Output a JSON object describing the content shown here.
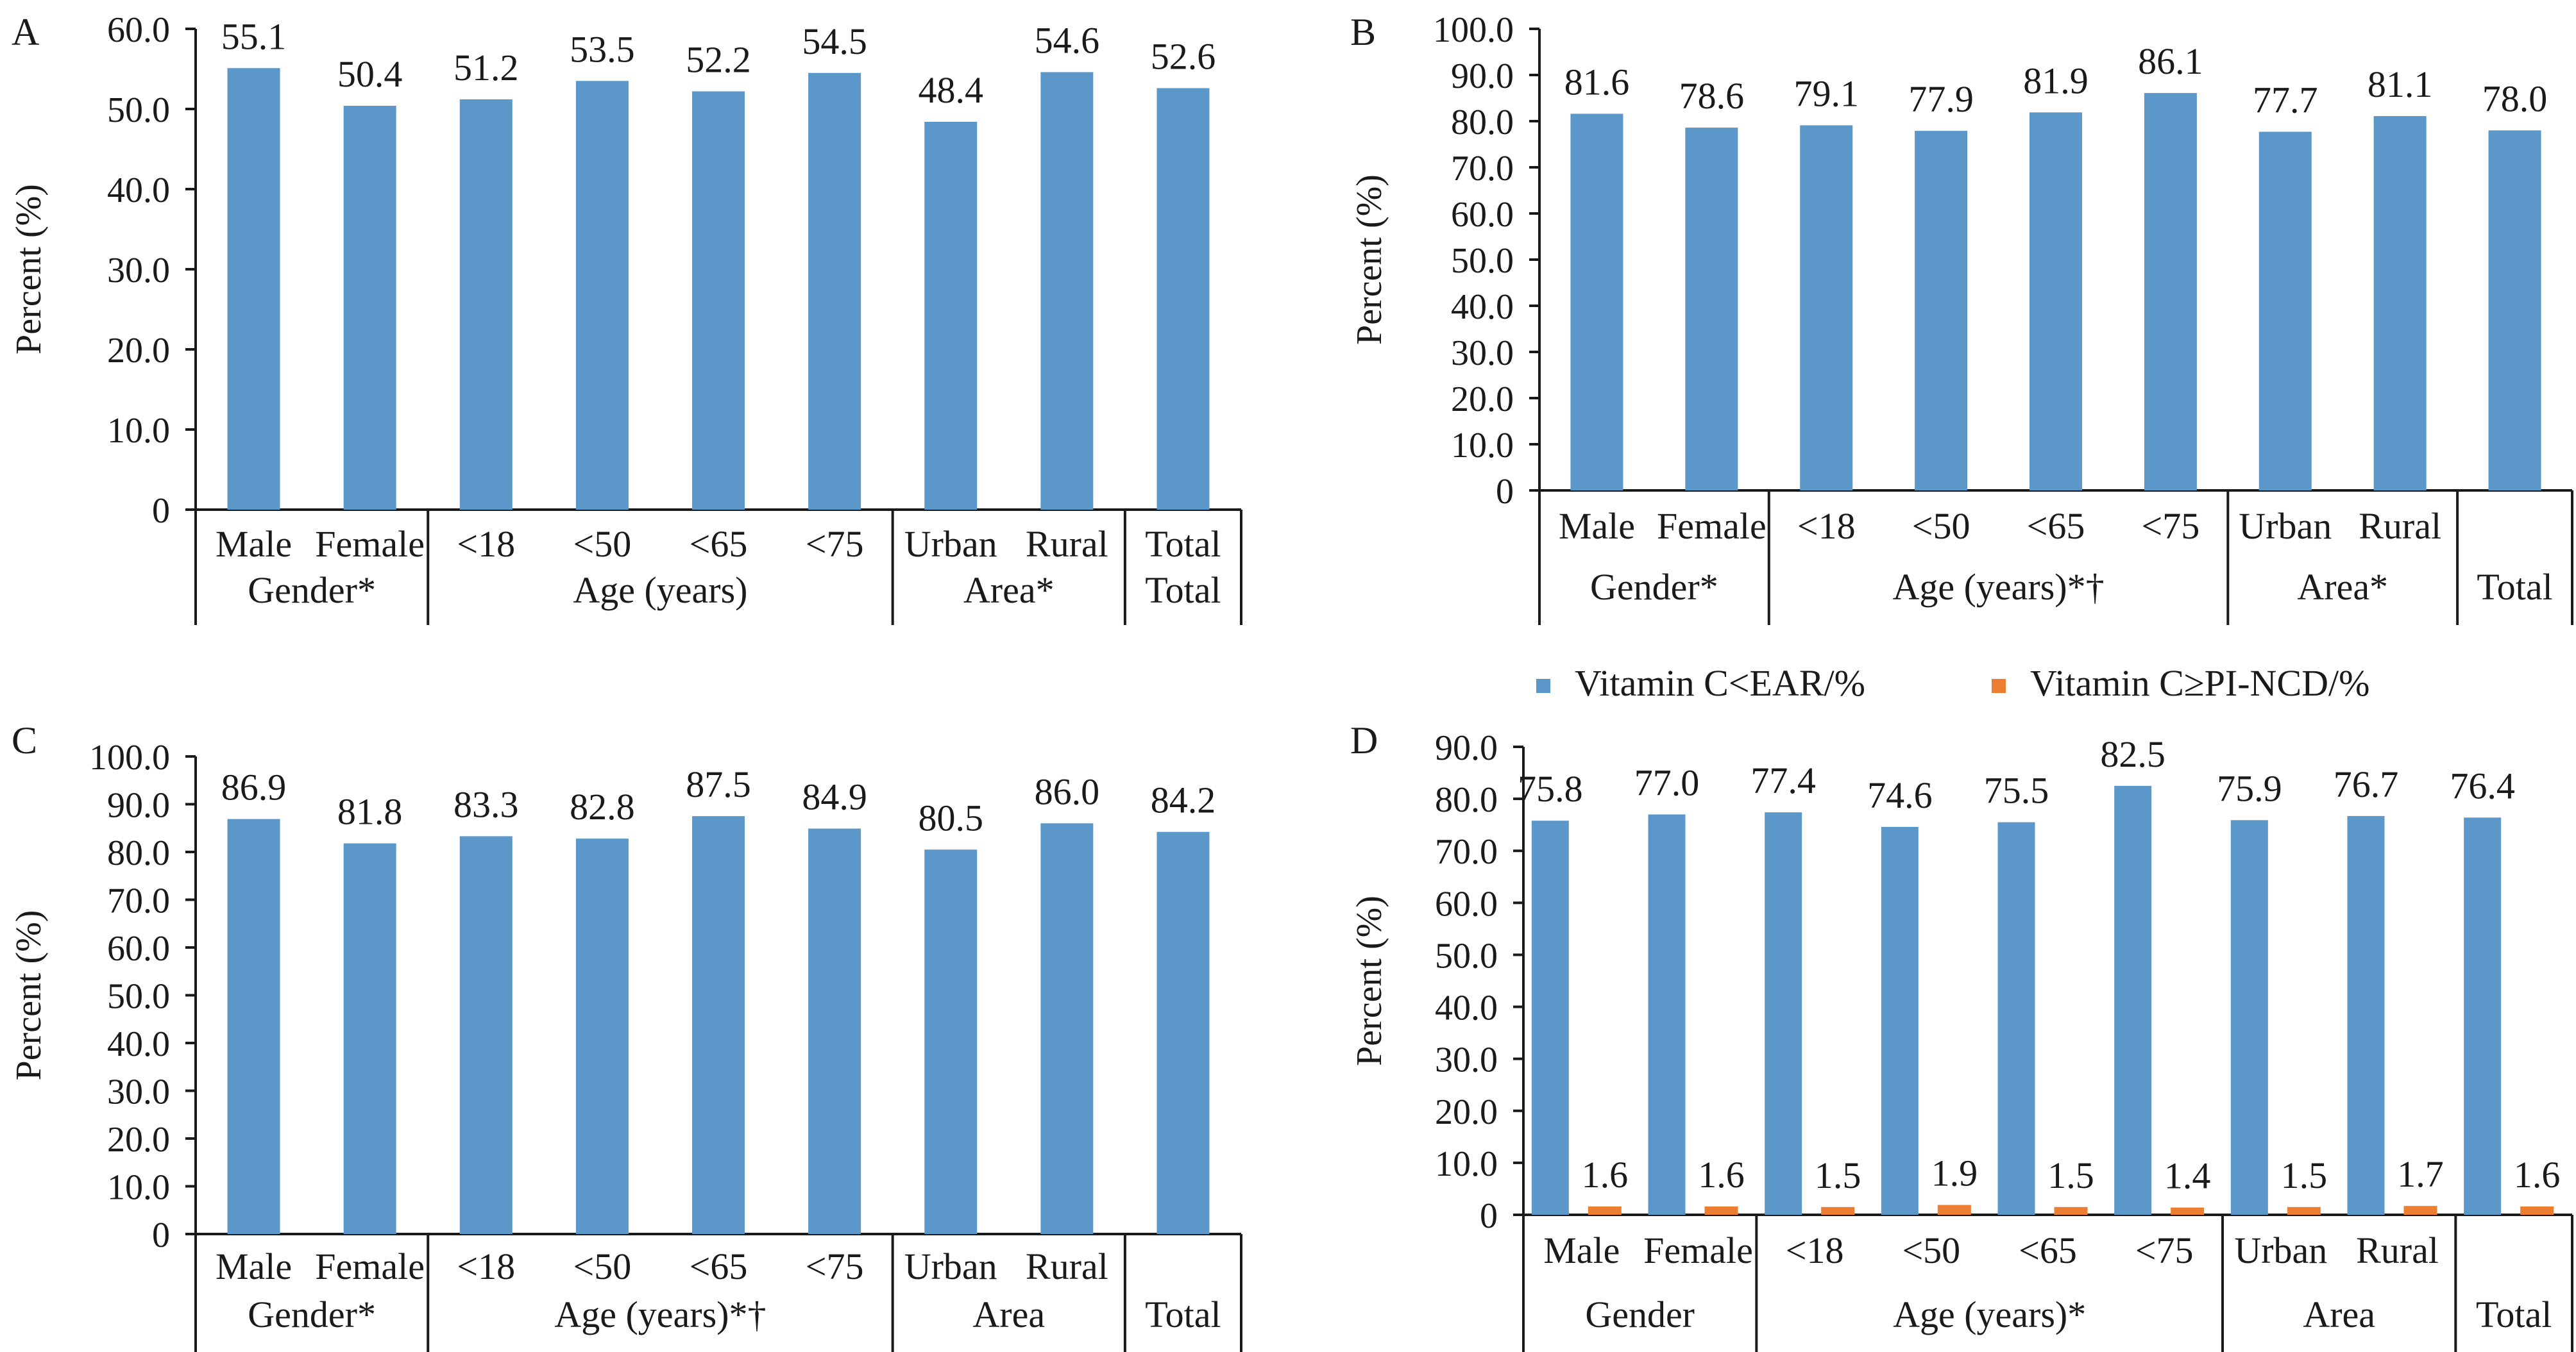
{
  "colors": {
    "bar": "#5b97c9",
    "bar2": "#ed7d31",
    "axis": "#1a1a1a"
  },
  "chart_data": [
    {
      "type": "bar",
      "panel_label": "A",
      "ylabel": "Percent (%)",
      "ylim": [
        0,
        60
      ],
      "yticks": [
        "0",
        "10.0",
        "20.0",
        "30.0",
        "40.0",
        "50.0",
        "60.0"
      ],
      "categories": [
        "Male",
        "Female",
        "<18",
        "<50",
        "<65",
        "<75",
        "Urban",
        "Rural",
        "Total"
      ],
      "groups": [
        "Gender*",
        "Age (years)",
        "Area*",
        "Total"
      ],
      "series": [
        {
          "values": [
            55.1,
            50.4,
            51.2,
            53.5,
            52.2,
            54.5,
            48.4,
            54.6,
            52.6
          ],
          "labels": [
            "55.1",
            "50.4",
            "51.2",
            "53.5",
            "52.2",
            "54.5",
            "48.4",
            "54.6",
            "52.6"
          ]
        }
      ],
      "grid": false
    },
    {
      "type": "bar",
      "panel_label": "B",
      "ylabel": "Percent (%)",
      "ylim": [
        0,
        100
      ],
      "yticks": [
        "0",
        "10.0",
        "20.0",
        "30.0",
        "40.0",
        "50.0",
        "60.0",
        "70.0",
        "80.0",
        "90.0",
        "100.0"
      ],
      "categories": [
        "Male",
        "Female",
        "<18",
        "<50",
        "<65",
        "<75",
        "Urban",
        "Rural",
        ""
      ],
      "groups": [
        "Gender*",
        "Age (years)*†",
        "Area*",
        "Total"
      ],
      "series": [
        {
          "values": [
            81.6,
            78.6,
            79.1,
            77.9,
            81.9,
            86.1,
            77.7,
            81.1,
            78.0
          ],
          "labels": [
            "81.6",
            "78.6",
            "79.1",
            "77.9",
            "81.9",
            "86.1",
            "77.7",
            "81.1",
            "78.0"
          ]
        }
      ],
      "grid": false
    },
    {
      "type": "bar",
      "panel_label": "C",
      "ylabel": "Percent (%)",
      "ylim": [
        0,
        100
      ],
      "yticks": [
        "0",
        "10.0",
        "20.0",
        "30.0",
        "40.0",
        "50.0",
        "60.0",
        "70.0",
        "80.0",
        "90.0",
        "100.0"
      ],
      "categories": [
        "Male",
        "Female",
        "<18",
        "<50",
        "<65",
        "<75",
        "Urban",
        "Rural",
        ""
      ],
      "groups": [
        "Gender*",
        "Age (years)*†",
        "Area",
        "Total"
      ],
      "series": [
        {
          "values": [
            86.9,
            81.8,
            83.3,
            82.8,
            87.5,
            84.9,
            80.5,
            86.0,
            84.2
          ],
          "labels": [
            "86.9",
            "81.8",
            "83.3",
            "82.8",
            "87.5",
            "84.9",
            "80.5",
            "86.0",
            "84.2"
          ]
        }
      ],
      "grid": false
    },
    {
      "type": "bar",
      "panel_label": "D",
      "ylabel": "Percent (%)",
      "ylim": [
        0,
        90
      ],
      "yticks": [
        "0",
        "10.0",
        "20.0",
        "30.0",
        "40.0",
        "50.0",
        "60.0",
        "70.0",
        "80.0",
        "90.0"
      ],
      "categories": [
        "Male",
        "Female",
        "<18",
        "<50",
        "<65",
        "<75",
        "Urban",
        "Rural",
        ""
      ],
      "groups": [
        "Gender",
        "Age (years)*",
        "Area",
        "Total"
      ],
      "legend_position": "top",
      "series": [
        {
          "name": "Vitamin C<EAR/%",
          "values": [
            75.8,
            77.0,
            77.4,
            74.6,
            75.5,
            82.5,
            75.9,
            76.7,
            76.4
          ],
          "labels": [
            "75.8",
            "77.0",
            "77.4",
            "74.6",
            "75.5",
            "82.5",
            "75.9",
            "76.7",
            "76.4"
          ]
        },
        {
          "name": "Vitamin C≥PI-NCD/%",
          "values": [
            1.6,
            1.6,
            1.5,
            1.9,
            1.5,
            1.4,
            1.5,
            1.7,
            1.6
          ],
          "labels": [
            "1.6",
            "1.6",
            "1.5",
            "1.9",
            "1.5",
            "1.4",
            "1.5",
            "1.7",
            "1.6"
          ]
        }
      ],
      "grid": false
    }
  ]
}
